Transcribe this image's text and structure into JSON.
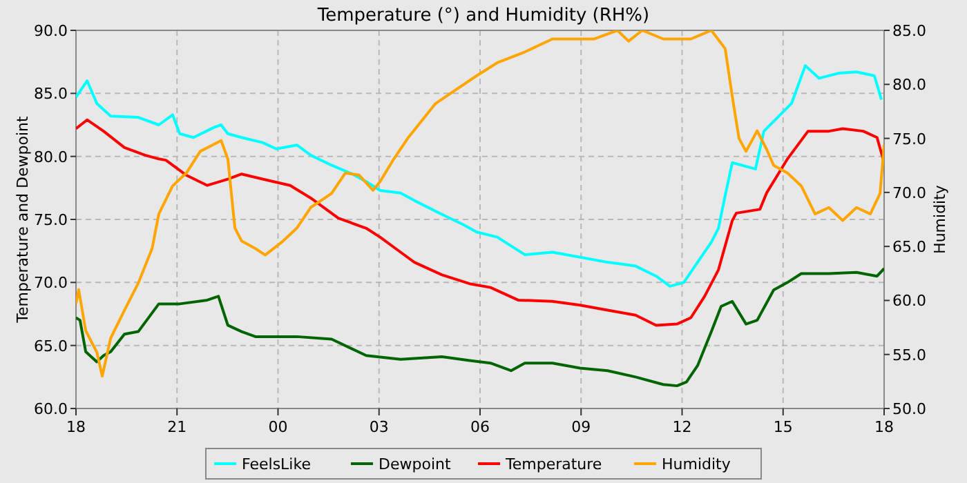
{
  "chart_data": {
    "type": "line",
    "title": "Temperature (°) and Humidity (RH%)",
    "ylabel": "Temperature and Dewpoint",
    "y2label": "Humidity",
    "xlim": [
      18,
      42
    ],
    "xticks": [
      {
        "value": 18,
        "label": "18"
      },
      {
        "value": 21,
        "label": "21"
      },
      {
        "value": 24,
        "label": "00"
      },
      {
        "value": 27,
        "label": "03"
      },
      {
        "value": 30,
        "label": "06"
      },
      {
        "value": 33,
        "label": "09"
      },
      {
        "value": 36,
        "label": "12"
      },
      {
        "value": 39,
        "label": "15"
      },
      {
        "value": 42,
        "label": "18"
      }
    ],
    "ylim": [
      60,
      90
    ],
    "yticks": [
      {
        "value": 60,
        "label": "60.0"
      },
      {
        "value": 65,
        "label": "65.0"
      },
      {
        "value": 70,
        "label": "70.0"
      },
      {
        "value": 75,
        "label": "75.0"
      },
      {
        "value": 80,
        "label": "80.0"
      },
      {
        "value": 85,
        "label": "85.0"
      },
      {
        "value": 90,
        "label": "90.0"
      }
    ],
    "y2lim": [
      50,
      85
    ],
    "y2ticks": [
      {
        "value": 50,
        "label": "50.0"
      },
      {
        "value": 55,
        "label": "55.0"
      },
      {
        "value": 60,
        "label": "60.0"
      },
      {
        "value": 65,
        "label": "65.0"
      },
      {
        "value": 70,
        "label": "70.0"
      },
      {
        "value": 75,
        "label": "75.0"
      },
      {
        "value": 80,
        "label": "80.0"
      },
      {
        "value": 85,
        "label": "85.0"
      }
    ],
    "grid": true,
    "legend": "bottom",
    "marker": "none",
    "line_style": "solid",
    "series": [
      {
        "name": "FeelsLike",
        "color": "#00ffff",
        "x": [
          18,
          18.33,
          18.62,
          19.03,
          19.85,
          20.46,
          20.87,
          21.08,
          21.49,
          22.1,
          22.31,
          22.51,
          22.92,
          23.54,
          23.95,
          24.56,
          24.97,
          25.59,
          26.21,
          26.62,
          27.03,
          27.64,
          28.05,
          28.87,
          29.49,
          29.9,
          30.51,
          31.33,
          32.15,
          32.97,
          33.79,
          34.62,
          35.23,
          35.64,
          36.05,
          36.46,
          36.87,
          37.08,
          37.28,
          37.49,
          38.18,
          38.43,
          39.25,
          39.66,
          40.07,
          40.65,
          41.18,
          41.71,
          41.92
        ],
        "values": [
          84.7,
          86,
          84.2,
          83.2,
          83.1,
          82.5,
          83.3,
          81.8,
          81.5,
          82.3,
          82.5,
          81.8,
          81.5,
          81.1,
          80.6,
          80.9,
          80.1,
          79.3,
          78.6,
          78,
          77.3,
          77.1,
          76.5,
          75.4,
          74.6,
          74,
          73.6,
          72.2,
          72.4,
          72,
          71.6,
          71.3,
          70.5,
          69.7,
          70,
          71.6,
          73.2,
          74.3,
          76.9,
          79.5,
          79,
          82,
          84.2,
          87.2,
          86.2,
          86.6,
          86.7,
          86.4,
          84.5
        ]
      },
      {
        "name": "Dewpoint",
        "color": "#006400",
        "x": [
          18,
          18.12,
          18.29,
          18.62,
          18.82,
          19.03,
          19.44,
          19.85,
          20.46,
          21.08,
          21.9,
          22.23,
          22.51,
          22.92,
          23.33,
          23.95,
          24.56,
          25.59,
          26.62,
          27.64,
          28.87,
          29.69,
          30.31,
          30.92,
          31.33,
          32.15,
          32.97,
          33.79,
          34.62,
          35.44,
          35.85,
          36.13,
          36.46,
          36.87,
          37.16,
          37.49,
          37.9,
          38.23,
          38.72,
          39.13,
          39.54,
          40.36,
          41.18,
          41.79,
          42
        ],
        "values": [
          67.2,
          67,
          64.5,
          63.7,
          64.2,
          64.5,
          65.9,
          66.1,
          68.3,
          68.3,
          68.6,
          68.9,
          66.6,
          66.1,
          65.7,
          65.7,
          65.7,
          65.5,
          64.2,
          63.9,
          64.1,
          63.8,
          63.6,
          63,
          63.6,
          63.6,
          63.2,
          63,
          62.5,
          61.9,
          61.8,
          62.1,
          63.4,
          66.1,
          68.1,
          68.5,
          66.7,
          67,
          69.4,
          70,
          70.7,
          70.7,
          70.8,
          70.5,
          71.1
        ]
      },
      {
        "name": "Temperature",
        "color": "#ff0000",
        "x": [
          18,
          18.33,
          18.82,
          19.44,
          20.05,
          20.46,
          20.67,
          21.28,
          21.9,
          22.51,
          22.92,
          23.54,
          24.36,
          24.97,
          25.79,
          26.62,
          27.03,
          27.64,
          28.05,
          28.87,
          29.69,
          30.31,
          31.13,
          32.15,
          32.97,
          33.79,
          34.62,
          35.23,
          35.85,
          36.26,
          36.67,
          37.08,
          37.49,
          37.61,
          38.31,
          38.51,
          39.13,
          39.74,
          40.36,
          40.77,
          41.38,
          41.79,
          42
        ],
        "values": [
          82.2,
          82.9,
          82,
          80.7,
          80.1,
          79.8,
          79.7,
          78.5,
          77.7,
          78.2,
          78.6,
          78.2,
          77.7,
          76.7,
          75.1,
          74.3,
          73.6,
          72.4,
          71.6,
          70.6,
          69.9,
          69.6,
          68.6,
          68.5,
          68.2,
          67.8,
          67.4,
          66.6,
          66.7,
          67.2,
          68.9,
          71,
          74.9,
          75.5,
          75.8,
          77.1,
          79.8,
          82,
          82,
          82.2,
          82,
          81.5,
          79.5
        ]
      },
      {
        "name": "Humidity",
        "color": "#ffa500",
        "axis": "y2",
        "x": [
          18,
          18.08,
          18.29,
          18.62,
          18.78,
          19.03,
          19.44,
          19.85,
          20.26,
          20.46,
          20.87,
          21.28,
          21.69,
          22.31,
          22.51,
          22.72,
          22.92,
          23.33,
          23.62,
          24.15,
          24.56,
          24.97,
          25.59,
          26,
          26.41,
          26.82,
          27.03,
          27.44,
          27.85,
          28.26,
          28.67,
          29.28,
          29.9,
          30.51,
          31.33,
          32.15,
          33.38,
          34.08,
          34.41,
          34.82,
          35.44,
          36.26,
          36.87,
          37.28,
          37.49,
          37.69,
          37.9,
          38.23,
          38.51,
          38.72,
          39.13,
          39.54,
          39.95,
          40.36,
          40.77,
          41.18,
          41.59,
          41.88,
          42
        ],
        "values": [
          59.7,
          61,
          57.2,
          55.2,
          53,
          56.5,
          59.1,
          61.6,
          64.8,
          68,
          70.6,
          71.8,
          73.8,
          74.8,
          73.1,
          66.7,
          65.5,
          64.8,
          64.2,
          65.5,
          66.7,
          68.6,
          69.9,
          71.8,
          71.6,
          70.2,
          71,
          73.1,
          75,
          76.6,
          78.2,
          79.5,
          80.8,
          82,
          83,
          84.2,
          84.2,
          85,
          84,
          85,
          84.2,
          84.2,
          85,
          83.3,
          78.9,
          75,
          73.8,
          75.7,
          74,
          72.5,
          71.8,
          70.6,
          68,
          68.6,
          67.4,
          68.6,
          68,
          69.9,
          74.4
        ]
      }
    ]
  }
}
